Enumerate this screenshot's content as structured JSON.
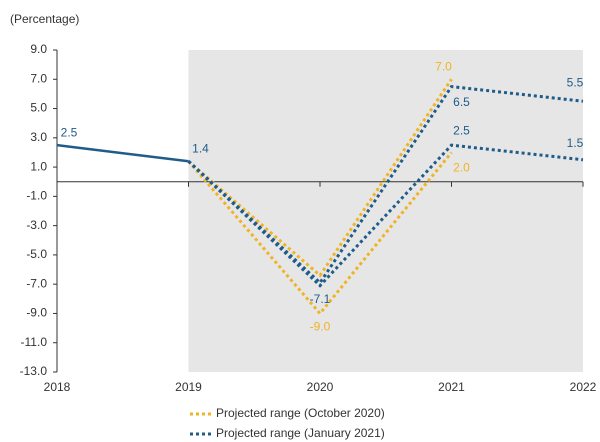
{
  "chart_data": {
    "type": "line",
    "y_label": "(Percentage)",
    "x": [
      2018,
      2019,
      2020,
      2021,
      2022
    ],
    "xlim": [
      2018,
      2022
    ],
    "xticks": [
      2018,
      2019,
      2020,
      2021,
      2022
    ],
    "ylim": [
      -13,
      9
    ],
    "yticks": [
      {
        "value": 9,
        "label": "9.0"
      },
      {
        "value": 7,
        "label": "7.0"
      },
      {
        "value": 5,
        "label": "5.0"
      },
      {
        "value": 3,
        "label": "3.0"
      },
      {
        "value": 1,
        "label": "1.0"
      },
      {
        "value": -1,
        "label": "-1.0"
      },
      {
        "value": -3,
        "label": "-3.0"
      },
      {
        "value": -5,
        "label": "-5.0"
      },
      {
        "value": -7,
        "label": "-7.0"
      },
      {
        "value": -9,
        "label": "-9.0"
      },
      {
        "value": -11,
        "label": "-11.0"
      },
      {
        "value": -13,
        "label": "-13.0"
      }
    ],
    "grid": false,
    "series": [
      {
        "color": "#1f5c8a",
        "style": "solid",
        "values": [
          2.5,
          1.4,
          null,
          null,
          null
        ],
        "value_labels": [
          "2.5",
          "1.4",
          null,
          null,
          null
        ]
      },
      {
        "name": "Projected range (October 2020)",
        "color": "#f0b323",
        "style": "dotted",
        "upper": [
          null,
          1.4,
          -6.4,
          7.0,
          null
        ],
        "upper_labels": [
          null,
          null,
          null,
          "7.0",
          null
        ],
        "lower": [
          null,
          1.4,
          -9.0,
          2.0,
          null
        ],
        "lower_labels": [
          null,
          null,
          "-9.0",
          "2.0",
          null
        ]
      },
      {
        "name": "Projected range (January 2021)",
        "color": "#1f5c8a",
        "style": "dotted",
        "upper": [
          null,
          1.4,
          -6.9,
          6.5,
          5.5
        ],
        "upper_labels": [
          null,
          null,
          null,
          "6.5",
          "5.5"
        ],
        "lower": [
          null,
          1.4,
          -7.1,
          2.5,
          1.5
        ],
        "lower_labels": [
          null,
          null,
          "-7.1",
          "2.5",
          "1.5"
        ]
      }
    ]
  }
}
